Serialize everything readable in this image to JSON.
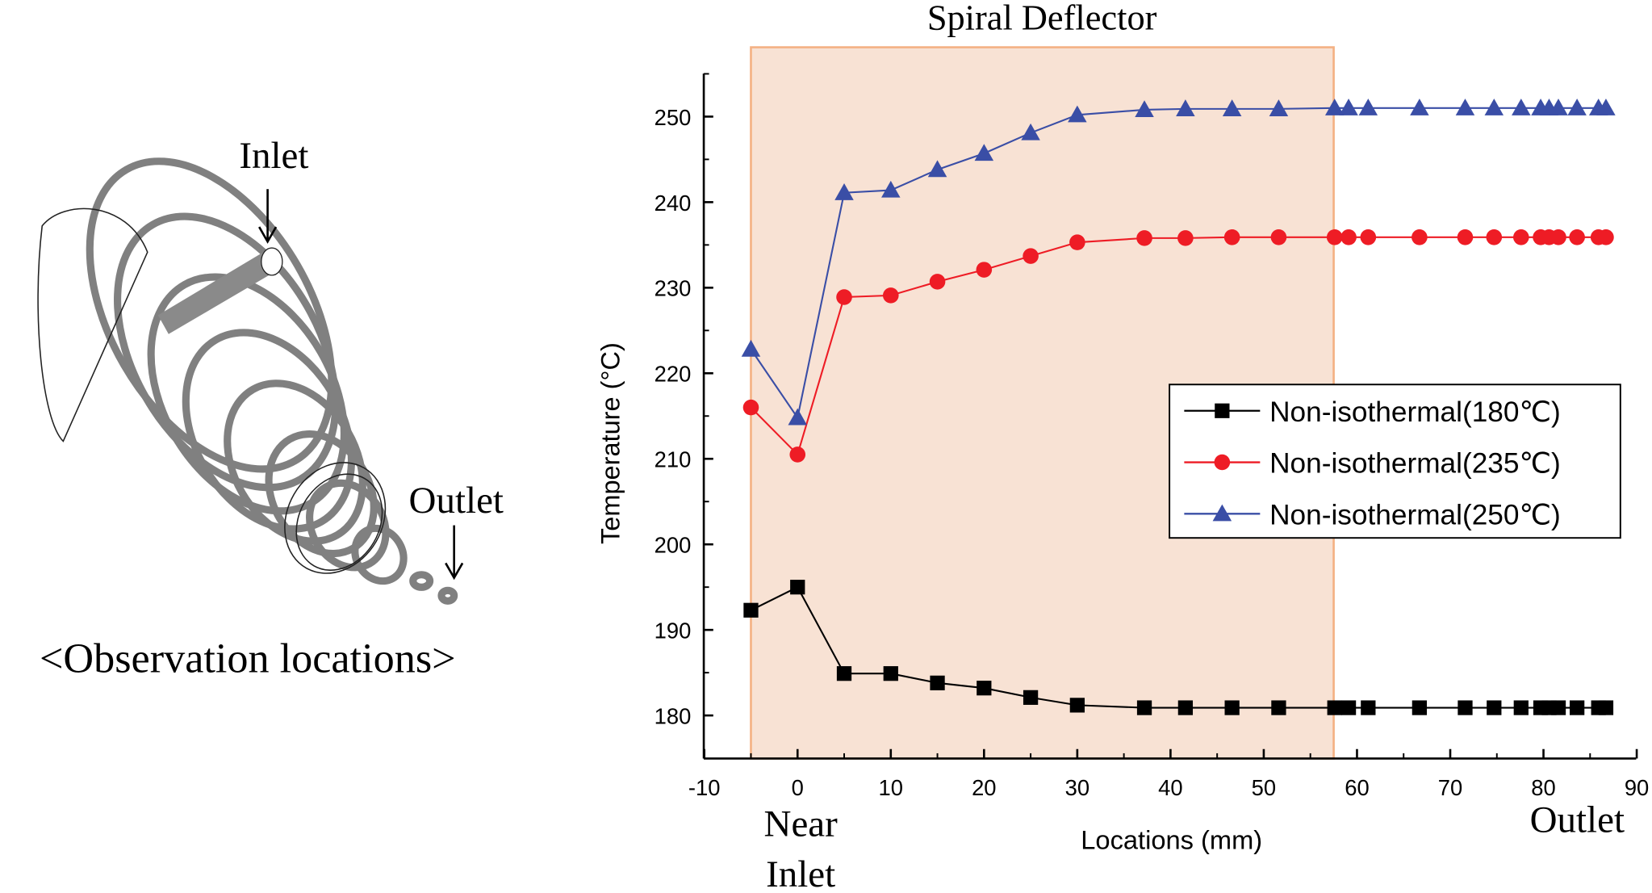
{
  "figure": {
    "left_panel": {
      "inlet_label": "Inlet",
      "outlet_label": "Outlet",
      "caption": "<Observation locations>"
    },
    "annotations": {
      "region_label": "Spiral Deflector",
      "near_inlet_line1": "Near",
      "near_inlet_line2": "Inlet",
      "outlet_label": "Outlet"
    }
  },
  "chart_data": {
    "type": "line",
    "title": "",
    "xlabel": "Locations (mm)",
    "ylabel": "Temperature (°C)",
    "xlim": [
      -10,
      90
    ],
    "ylim": [
      175,
      255
    ],
    "xticks": [
      -10,
      0,
      10,
      20,
      30,
      40,
      50,
      60,
      70,
      80,
      90
    ],
    "yticks": [
      180,
      190,
      200,
      210,
      220,
      230,
      240,
      250
    ],
    "grid": false,
    "legend_position": "center-right",
    "shaded_region": {
      "label": "Spiral Deflector",
      "x": [
        -5,
        57.5
      ],
      "color": "#f8e2d4",
      "edge": "#f4b183"
    },
    "x": [
      -5,
      0,
      5,
      10,
      15,
      20,
      25,
      30,
      37.2,
      41.6,
      46.6,
      51.6,
      57.6,
      59.1,
      61.2,
      66.7,
      71.6,
      74.7,
      77.6,
      79.7,
      80.6,
      81.6,
      83.6,
      85.9,
      86.7
    ],
    "series": [
      {
        "name": "Non-isothermal(180℃)",
        "color": "#000000",
        "marker": "square",
        "values": [
          192.3,
          195,
          184.9,
          184.9,
          183.8,
          183.2,
          182.1,
          181.2,
          180.9,
          180.9,
          180.9,
          180.9,
          180.9,
          180.9,
          180.9,
          180.9,
          180.9,
          180.9,
          180.9,
          180.9,
          180.9,
          180.9,
          180.9,
          180.9,
          180.9
        ]
      },
      {
        "name": "Non-isothermal(235℃)",
        "color": "#ee1c25",
        "marker": "circle",
        "values": [
          216.0,
          210.5,
          228.9,
          229.1,
          230.7,
          232.1,
          233.7,
          235.3,
          235.8,
          235.8,
          235.9,
          235.9,
          235.9,
          235.9,
          235.9,
          235.9,
          235.9,
          235.9,
          235.9,
          235.9,
          235.9,
          235.9,
          235.9,
          235.9,
          235.9
        ]
      },
      {
        "name": "Non-isothermal(250℃)",
        "color": "#3a4ea6",
        "marker": "triangle",
        "values": [
          222.8,
          214.8,
          241.1,
          241.4,
          243.8,
          245.7,
          248.1,
          250.2,
          250.8,
          250.9,
          250.9,
          250.9,
          251,
          251,
          251,
          251,
          251,
          251,
          251,
          251,
          251,
          251,
          251,
          251,
          251
        ]
      }
    ]
  }
}
